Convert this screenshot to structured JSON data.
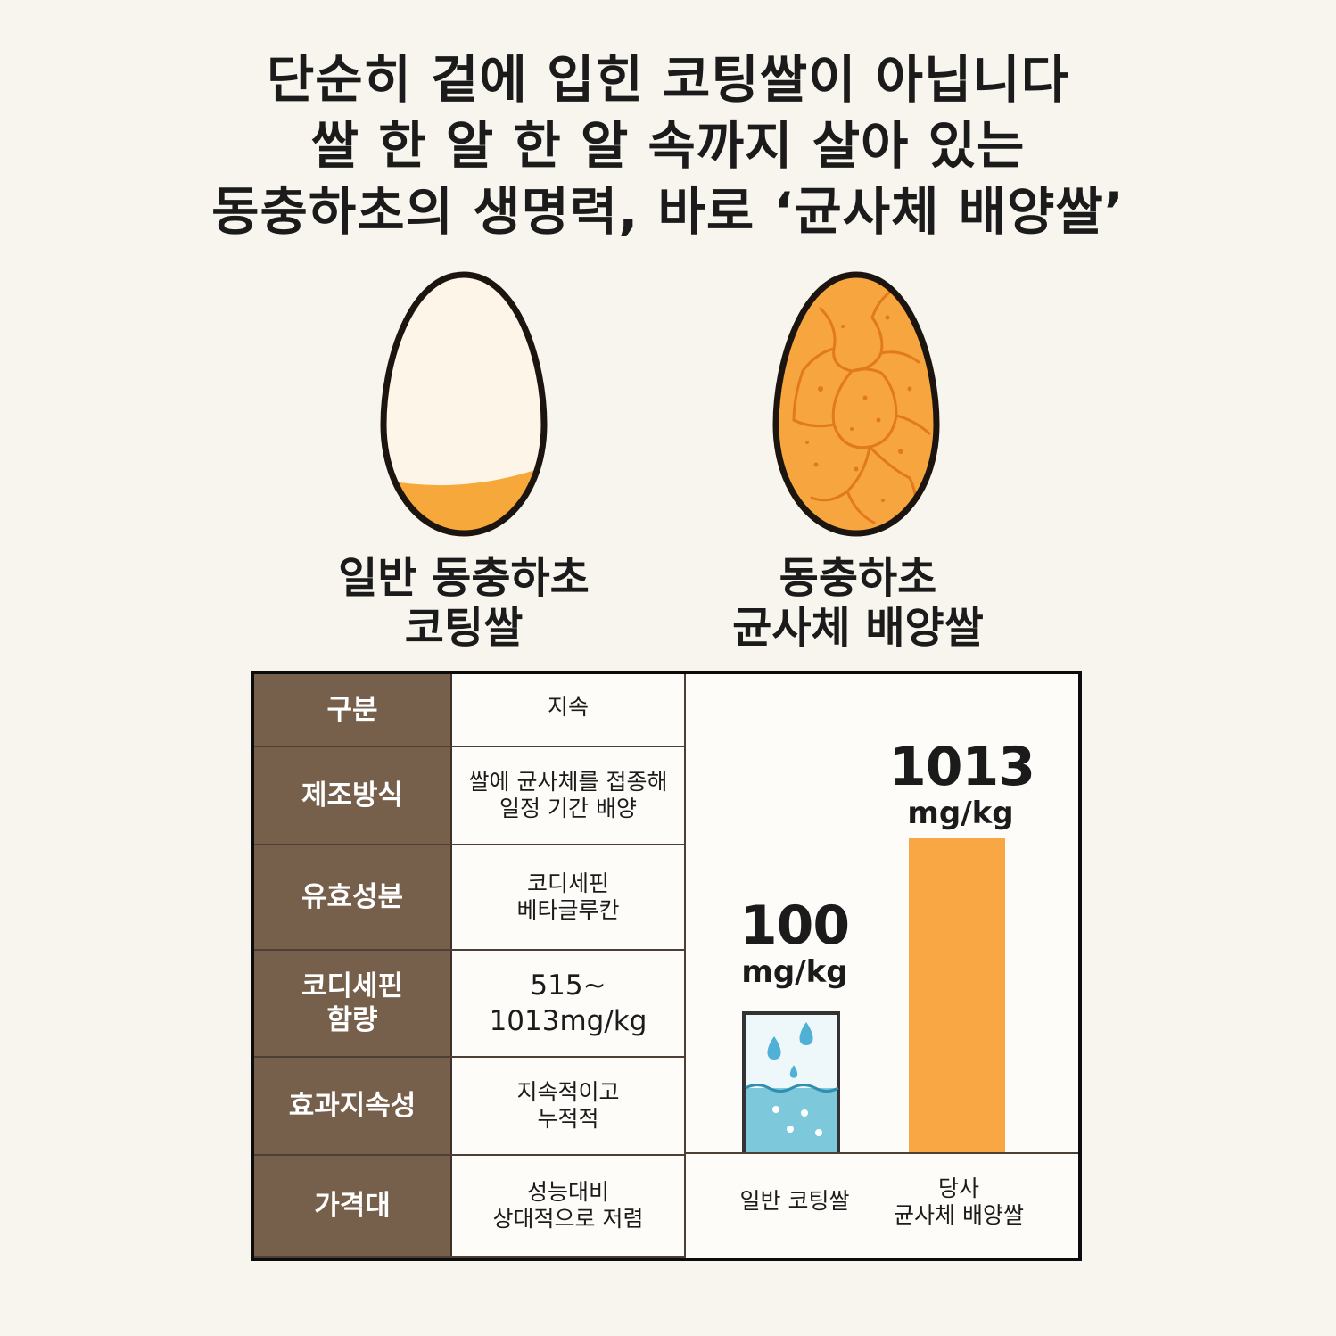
{
  "headline": {
    "line1": "단순히 겉에 입힌 코팅쌀이 아닙니다",
    "line2": "쌀 한 알 한 알 속까지 살아 있는",
    "line3": "동충하초의 생명력, 바로 ‘균사체 배양쌀’"
  },
  "grains": [
    {
      "label_line1": "일반 동충하초",
      "label_line2": "코팅쌀",
      "color": "#fdf5e8",
      "accent": "#f6a83a"
    },
    {
      "label_line1": "동충하초",
      "label_line2": "균사체 배양쌀",
      "color": "#f7a53e",
      "accent": "#e27f1c"
    }
  ],
  "table": {
    "rows": [
      {
        "header": "구분",
        "value": "지속"
      },
      {
        "header": "제조방식",
        "value": "쌀에 균사체를 접종해\n일정 기간 배양"
      },
      {
        "header": "유효성분",
        "value": "코디세핀\n베타글루칸"
      },
      {
        "header": "코디세핀\n함량",
        "value": "515~\n1013mg/kg"
      },
      {
        "header": "효과지속성",
        "value": "지속적이고\n누적적"
      },
      {
        "header": "가격대",
        "value": "성능대비\n상대적으로 저렴"
      }
    ]
  },
  "chart_data": {
    "type": "bar",
    "categories": [
      "일반 코팅쌀",
      "당사\n균사체 배양쌀"
    ],
    "values": [
      100,
      1013
    ],
    "value_labels": [
      {
        "num": "100",
        "unit": "mg/kg"
      },
      {
        "num": "1013",
        "unit": "mg/kg"
      }
    ],
    "colors": [
      "#7ec8dc",
      "#f8a744"
    ]
  }
}
